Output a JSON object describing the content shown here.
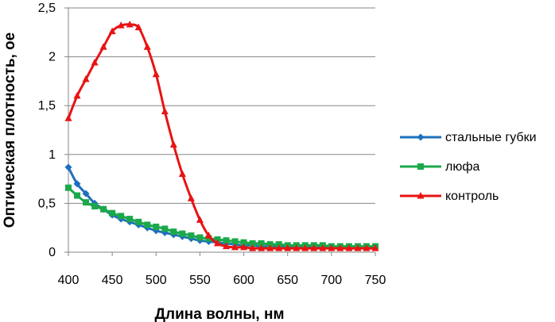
{
  "chart_data": {
    "type": "line",
    "title": "",
    "xlabel": "Длина волны, нм",
    "ylabel": "Оптическая плотность, ое",
    "xlim": [
      400,
      750
    ],
    "ylim": [
      0,
      2.5
    ],
    "x_ticks": [
      "400",
      "450",
      "500",
      "550",
      "600",
      "650",
      "700",
      "750"
    ],
    "y_ticks": [
      "0",
      "0,5",
      "1",
      "1,5",
      "2",
      "2,5"
    ],
    "grid": "horizontal",
    "legend_position": "right",
    "x": [
      400,
      410,
      420,
      430,
      440,
      450,
      460,
      470,
      480,
      490,
      500,
      510,
      520,
      530,
      540,
      550,
      560,
      570,
      580,
      590,
      600,
      610,
      620,
      630,
      640,
      650,
      660,
      670,
      680,
      690,
      700,
      710,
      720,
      730,
      740,
      750
    ],
    "series": [
      {
        "name": "стальные губки",
        "color": "#1f6fbf",
        "marker": "diamond",
        "values": [
          0.87,
          0.7,
          0.6,
          0.5,
          0.44,
          0.38,
          0.34,
          0.31,
          0.28,
          0.25,
          0.22,
          0.2,
          0.18,
          0.16,
          0.14,
          0.12,
          0.11,
          0.1,
          0.09,
          0.08,
          0.07,
          0.07,
          0.06,
          0.06,
          0.06,
          0.05,
          0.05,
          0.05,
          0.05,
          0.05,
          0.05,
          0.05,
          0.05,
          0.05,
          0.05,
          0.05
        ]
      },
      {
        "name": "люфа",
        "color": "#1aa84a",
        "marker": "square",
        "values": [
          0.66,
          0.58,
          0.51,
          0.47,
          0.44,
          0.4,
          0.37,
          0.34,
          0.31,
          0.28,
          0.26,
          0.24,
          0.21,
          0.19,
          0.17,
          0.15,
          0.14,
          0.13,
          0.12,
          0.11,
          0.1,
          0.09,
          0.09,
          0.08,
          0.08,
          0.07,
          0.07,
          0.07,
          0.07,
          0.07,
          0.06,
          0.06,
          0.06,
          0.06,
          0.06,
          0.06
        ]
      },
      {
        "name": "контроль",
        "color": "#e81313",
        "marker": "triangle",
        "values": [
          1.37,
          1.6,
          1.77,
          1.94,
          2.1,
          2.26,
          2.32,
          2.33,
          2.3,
          2.1,
          1.82,
          1.44,
          1.1,
          0.8,
          0.55,
          0.33,
          0.17,
          0.09,
          0.06,
          0.05,
          0.05,
          0.04,
          0.04,
          0.04,
          0.04,
          0.04,
          0.04,
          0.04,
          0.04,
          0.04,
          0.04,
          0.04,
          0.04,
          0.04,
          0.04,
          0.04
        ]
      }
    ]
  }
}
